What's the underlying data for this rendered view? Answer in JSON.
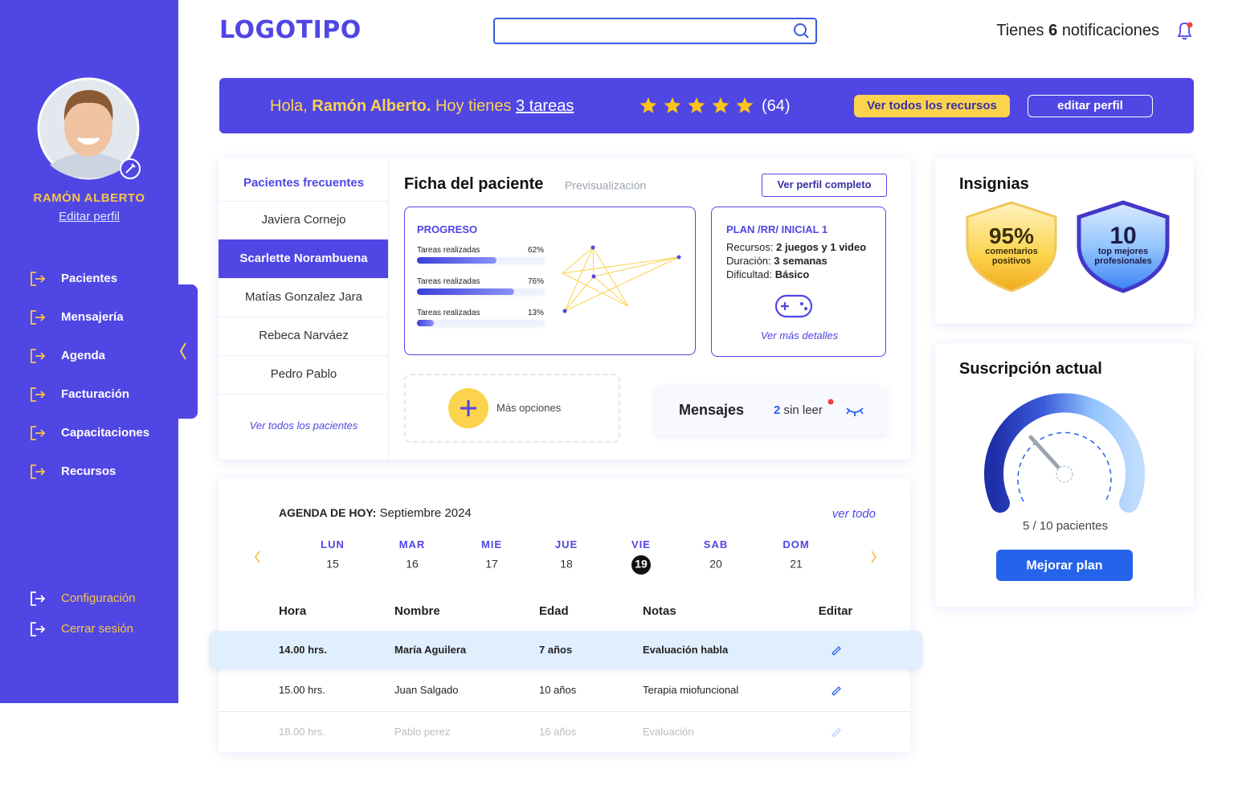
{
  "header": {
    "logo": "LOGOTIPO",
    "notifications": {
      "prefix": "Tienes",
      "count": 6,
      "suffix": "notificaciones"
    }
  },
  "sidebar": {
    "user_name": "RAMÓN ALBERTO",
    "edit_profile": "Editar perfil",
    "menu": [
      "Pacientes",
      "Mensajería",
      "Agenda",
      "Facturación",
      "Capacitaciones",
      "Recursos"
    ],
    "footer_menu": [
      "Configuración",
      "Cerrar sesión"
    ]
  },
  "banner": {
    "greeting": "Hola,",
    "name": "Ramón Alberto.",
    "tasks_text": "Hoy tienes",
    "tasks_link": "3 tareas",
    "rating_count": "(64)",
    "resources_button": "Ver todos los recursos",
    "edit_button": "editar perfil"
  },
  "patients": {
    "title": "Pacientes frecuentes",
    "list": [
      "Javiera Cornejo",
      "Scarlette Norambuena",
      "Matías Gonzalez Jara",
      "Rebeca Narváez",
      "Pedro Pablo"
    ],
    "selected": 1,
    "view_all": "Ver todos los pacientes"
  },
  "patient_card": {
    "title": "Ficha del paciente",
    "subtitle": "Previsualización",
    "profile_button": "Ver perfil completo",
    "progress": {
      "title": "PROGRESO",
      "items": [
        {
          "label": "Tareas realizadas",
          "value": 62,
          "value_label": "62%"
        },
        {
          "label": "Tareas realizadas",
          "value": 76,
          "value_label": "76%"
        },
        {
          "label": "Tareas realizadas",
          "value": 13,
          "value_label": "13%"
        }
      ]
    },
    "plan": {
      "title": "PLAN /RR/ INICIAL 1",
      "details": [
        {
          "label": "Recursos:",
          "value": "2 juegos y 1 video"
        },
        {
          "label": "Duración:",
          "value": "3 semanas"
        },
        {
          "label": "Dificultad:",
          "value": "Básico"
        }
      ],
      "link": "Ver más detalles"
    },
    "more_options": "Más opciones",
    "messages": {
      "title": "Mensajes",
      "unread_count": 2,
      "unread_label": "sin leer"
    }
  },
  "badges": {
    "title": "Insignias",
    "items": [
      {
        "value": "95%",
        "label": "comentarios positivos"
      },
      {
        "value": "10",
        "label": "top mejores profesionales"
      }
    ]
  },
  "subscription": {
    "title": "Suscripción actual",
    "usage": "5 / 10 pacientes",
    "button": "Mejorar plan"
  },
  "agenda": {
    "title": "AGENDA DE HOY:",
    "month": "Septiembre 2024",
    "view_all": "ver todo",
    "days": [
      {
        "name": "LUN",
        "number": 15
      },
      {
        "name": "MAR",
        "number": 16
      },
      {
        "name": "MIE",
        "number": 17
      },
      {
        "name": "JUE",
        "number": 18
      },
      {
        "name": "VIE",
        "number": 19
      },
      {
        "name": "SAB",
        "number": 20
      },
      {
        "name": "DOM",
        "number": 21
      }
    ],
    "selected_day": 4,
    "table": {
      "columns": [
        "Hora",
        "Nombre",
        "Edad",
        "Notas",
        "Editar"
      ],
      "rows": [
        [
          "14.00 hrs.",
          "María Aguilera",
          "7 años",
          "Evaluación habla"
        ],
        [
          "15.00 hrs.",
          "Juan Salgado",
          "10 años",
          "Terapia miofuncional"
        ],
        [
          "18.00 hrs.",
          "Pablo perez",
          "16 años",
          "Evaluación"
        ]
      ],
      "highlighted_row": 0
    }
  }
}
